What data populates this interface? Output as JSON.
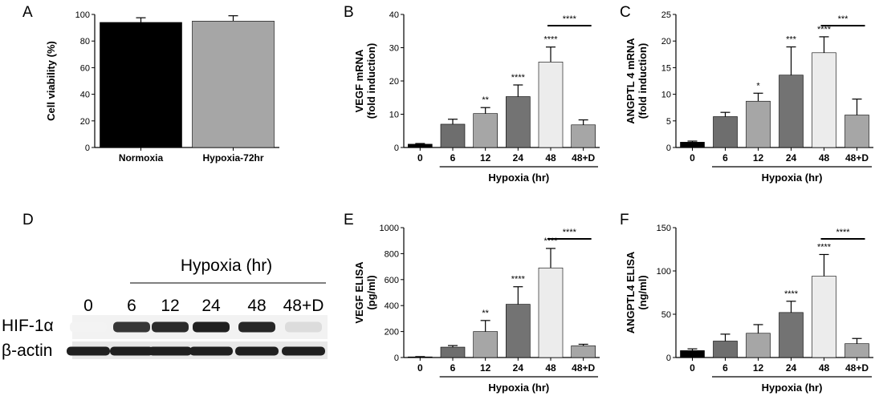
{
  "panels": [
    {
      "letter": "A"
    },
    {
      "letter": "B"
    },
    {
      "letter": "C"
    },
    {
      "letter": "D"
    },
    {
      "letter": "E"
    },
    {
      "letter": "F"
    }
  ],
  "chart_data": [
    {
      "id": "A",
      "type": "bar",
      "categories": [
        "Normoxia",
        "Hypoxia-72hr"
      ],
      "values": [
        94,
        95
      ],
      "errors": [
        3.5,
        4
      ],
      "colors": [
        "#000000",
        "#a6a6a6"
      ],
      "ylabel": "Cell viability (%)",
      "ylim": [
        0,
        100
      ],
      "yticks": [
        0,
        20,
        40,
        60,
        80,
        100
      ],
      "significance": [
        "",
        ""
      ],
      "group_label": "",
      "bracket_label": ""
    },
    {
      "id": "B",
      "type": "bar",
      "categories": [
        "0",
        "6",
        "12",
        "24",
        "48",
        "48+D"
      ],
      "values": [
        1,
        7,
        10.2,
        15.3,
        25.7,
        6.8
      ],
      "errors": [
        0.2,
        1.5,
        1.8,
        3.5,
        4.5,
        1.5
      ],
      "colors": [
        "#000000",
        "#6e6e6e",
        "#a6a6a6",
        "#737373",
        "#ececec",
        "#a6a6a6"
      ],
      "ylabel": "VEGF mRNA (fold induction)",
      "ylim": [
        0,
        40
      ],
      "yticks": [
        0,
        10,
        20,
        30,
        40
      ],
      "significance": [
        "",
        "",
        "**",
        "****",
        "****",
        ""
      ],
      "group_label": "Hypoxia (hr)",
      "bracket_label": "****"
    },
    {
      "id": "C",
      "type": "bar",
      "categories": [
        "0",
        "6",
        "12",
        "24",
        "48",
        "48+D"
      ],
      "values": [
        1,
        5.8,
        8.7,
        13.6,
        17.8,
        6.1
      ],
      "errors": [
        0.2,
        0.8,
        1.5,
        5.3,
        3.0,
        3.0
      ],
      "colors": [
        "#000000",
        "#6e6e6e",
        "#a6a6a6",
        "#737373",
        "#ececec",
        "#a6a6a6"
      ],
      "ylabel": "ANGPTL 4 mRNA (fold induction)",
      "ylim": [
        0,
        25
      ],
      "yticks": [
        0,
        5,
        10,
        15,
        20,
        25
      ],
      "significance": [
        "",
        "",
        "*",
        "***",
        "****",
        ""
      ],
      "group_label": "Hypoxia (hr)",
      "bracket_label": "***"
    },
    {
      "id": "E",
      "type": "bar",
      "categories": [
        "0",
        "6",
        "12",
        "24",
        "48",
        "48+D"
      ],
      "values": [
        5,
        80,
        200,
        410,
        690,
        90
      ],
      "errors": [
        2,
        12,
        85,
        135,
        150,
        12
      ],
      "colors": [
        "#000000",
        "#6e6e6e",
        "#a6a6a6",
        "#737373",
        "#ececec",
        "#a6a6a6"
      ],
      "ylabel": "VEGF ELISA (pg/ml)",
      "ylim": [
        0,
        1000
      ],
      "yticks": [
        0,
        200,
        400,
        600,
        800,
        1000
      ],
      "significance": [
        "",
        "",
        "**",
        "****",
        "****",
        ""
      ],
      "group_label": "Hypoxia (hr)",
      "bracket_label": "****"
    },
    {
      "id": "F",
      "type": "bar",
      "categories": [
        "0",
        "6",
        "12",
        "24",
        "48",
        "48+D"
      ],
      "values": [
        8,
        19,
        28,
        52,
        94,
        16
      ],
      "errors": [
        2,
        8,
        10,
        13,
        25,
        6
      ],
      "colors": [
        "#000000",
        "#6e6e6e",
        "#a6a6a6",
        "#737373",
        "#ececec",
        "#a6a6a6"
      ],
      "ylabel": "ANGPTL4 ELISA (ng/ml)",
      "ylim": [
        0,
        150
      ],
      "yticks": [
        0,
        50,
        100,
        150
      ],
      "significance": [
        "",
        "",
        "",
        "****",
        "****",
        ""
      ],
      "group_label": "Hypoxia (hr)",
      "bracket_label": "****"
    }
  ],
  "western_blot": {
    "group_label": "Hypoxia (hr)",
    "lanes": [
      "0",
      "6",
      "12",
      "24",
      "48",
      "48+D"
    ],
    "rows": [
      {
        "label": "HIF-1α",
        "intensity": [
          0.05,
          0.85,
          0.9,
          0.95,
          0.92,
          0.15
        ]
      },
      {
        "label": "β-actin",
        "intensity": [
          0.95,
          0.95,
          0.95,
          0.95,
          0.95,
          0.95
        ]
      }
    ]
  }
}
